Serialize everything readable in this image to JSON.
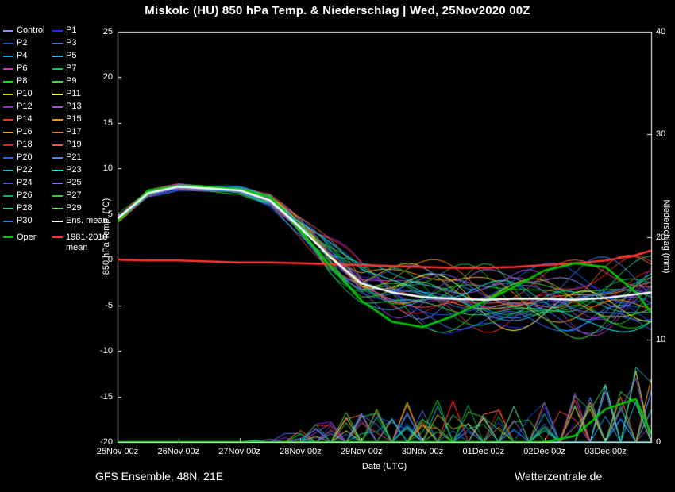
{
  "title": "Miskolc (HU) 850 hPa Temp. & Niederschlag | Wed, 25Nov2020 00Z",
  "footer": {
    "left": "GFS Ensemble, 48N, 21E",
    "right": "Wetterzentrale.de"
  },
  "legend": {
    "members": [
      {
        "label": "Control",
        "color": "#8c8cff"
      },
      {
        "label": "P1",
        "color": "#2929ff"
      },
      {
        "label": "P2",
        "color": "#0a5aff"
      },
      {
        "label": "P3",
        "color": "#3c78ff"
      },
      {
        "label": "P4",
        "color": "#00a0ff"
      },
      {
        "label": "P5",
        "color": "#28b4ff"
      },
      {
        "label": "P6",
        "color": "#c832c8"
      },
      {
        "label": "P7",
        "color": "#00c850"
      },
      {
        "label": "P8",
        "color": "#00e600"
      },
      {
        "label": "P9",
        "color": "#3cdc3c"
      },
      {
        "label": "P10",
        "color": "#d2d200"
      },
      {
        "label": "P11",
        "color": "#ffff3c"
      },
      {
        "label": "P12",
        "color": "#8c28d2"
      },
      {
        "label": "P13",
        "color": "#a050e6"
      },
      {
        "label": "P14",
        "color": "#ff3232"
      },
      {
        "label": "P15",
        "color": "#ff8c00"
      },
      {
        "label": "P16",
        "color": "#ffaa00"
      },
      {
        "label": "P17",
        "color": "#ff7828"
      },
      {
        "label": "P18",
        "color": "#e61e1e"
      },
      {
        "label": "P19",
        "color": "#ff5050"
      },
      {
        "label": "P20",
        "color": "#1e64ff"
      },
      {
        "label": "P21",
        "color": "#4687ff"
      },
      {
        "label": "P22",
        "color": "#00c8c8"
      },
      {
        "label": "P23",
        "color": "#00ffff"
      },
      {
        "label": "P24",
        "color": "#5050dc"
      },
      {
        "label": "P25",
        "color": "#7864ff"
      },
      {
        "label": "P26",
        "color": "#00b450"
      },
      {
        "label": "P27",
        "color": "#32cd32"
      },
      {
        "label": "P28",
        "color": "#28dc82"
      },
      {
        "label": "P29",
        "color": "#50e650"
      },
      {
        "label": "P30",
        "color": "#3273e6"
      },
      {
        "label": "Ens. mean",
        "color": "#ffffff"
      }
    ],
    "extra": [
      {
        "label": "Oper",
        "color": "#00c800"
      },
      {
        "label": "1981-2010 mean",
        "color": "#ff3434"
      }
    ]
  },
  "chart_data": {
    "type": "line",
    "title": "Miskolc (HU) 850 hPa Temp. & Niederschlag | Wed, 25Nov2020 00Z",
    "xlabel": "Date (UTC)",
    "ylabel_left": "850 hPa Temp. (°C)",
    "ylabel_right": "Niederschlag (mm)",
    "x_tick_labels": [
      "25Nov 00z",
      "26Nov 00z",
      "27Nov 00z",
      "28Nov 00z",
      "29Nov 00z",
      "30Nov 00z",
      "01Dec 00z",
      "02Dec 00z",
      "03Dec 00z"
    ],
    "x_span_days": 8.75,
    "temp_ticks": [
      25,
      20,
      15,
      10,
      5,
      0,
      -5,
      -10,
      -15,
      -20
    ],
    "precip_ticks": [
      40,
      30,
      20,
      10,
      0
    ],
    "ylim_temp": [
      -20,
      25
    ],
    "ylim_precip": [
      0,
      40
    ],
    "x_days": [
      0,
      0.5,
      1,
      1.5,
      2,
      2.5,
      3,
      3.5,
      4,
      4.5,
      5,
      5.5,
      6,
      6.5,
      7,
      7.5,
      8,
      8.5,
      8.75
    ],
    "series": [
      {
        "name": "1981-2010 mean",
        "color": "#ff3434",
        "width": 2.5,
        "values": [
          0,
          -0.1,
          -0.1,
          -0.2,
          -0.3,
          -0.3,
          -0.4,
          -0.5,
          -0.6,
          -0.7,
          -0.8,
          -0.9,
          -0.9,
          -0.8,
          -0.6,
          -0.4,
          -0.1,
          0.5,
          1.0
        ]
      },
      {
        "name": "Oper",
        "color": "#00c800",
        "width": 2.5,
        "values": [
          4.2,
          7.6,
          8.1,
          8.0,
          7.7,
          6.9,
          3.2,
          -0.8,
          -4.5,
          -6.8,
          -7.4,
          -6.2,
          -4.6,
          -3.0,
          -1.2,
          -0.4,
          -0.8,
          -3.6,
          -5.8
        ]
      },
      {
        "name": "Ens. mean",
        "color": "#ffffff",
        "width": 2.5,
        "values": [
          4.5,
          7.3,
          8.0,
          7.8,
          7.6,
          6.5,
          3.5,
          0.2,
          -2.6,
          -3.6,
          -4.1,
          -4.3,
          -4.4,
          -4.3,
          -4.3,
          -4.4,
          -4.2,
          -3.8,
          -3.6
        ]
      }
    ],
    "ensemble": {
      "members": [
        "Control",
        "P1",
        "P2",
        "P3",
        "P4",
        "P5",
        "P6",
        "P7",
        "P8",
        "P9",
        "P10",
        "P11",
        "P12",
        "P13",
        "P14",
        "P15",
        "P16",
        "P17",
        "P18",
        "P19",
        "P20",
        "P21",
        "P22",
        "P23",
        "P24",
        "P25",
        "P26",
        "P27",
        "P28",
        "P29",
        "P30"
      ],
      "base": [
        4.5,
        7.3,
        8.0,
        7.8,
        7.6,
        6.5,
        3.5,
        0.2,
        -2.6,
        -3.6,
        -4.1,
        -4.3,
        -4.4,
        -4.3,
        -4.3,
        -4.4,
        -4.2,
        -3.8,
        -3.6
      ],
      "spread": [
        0.5,
        0.5,
        0.45,
        0.45,
        0.5,
        0.9,
        1.6,
        2.6,
        3.2,
        3.6,
        4.0,
        4.3,
        4.5,
        4.6,
        4.6,
        4.8,
        5.0,
        5.0,
        5.0
      ],
      "precip_max": [
        0,
        0,
        0,
        0,
        0,
        0.4,
        1.0,
        2.0,
        2.6,
        3.0,
        3.0,
        3.4,
        3.0,
        3.0,
        3.2,
        4.0,
        4.5,
        6.0,
        5.0
      ],
      "oper_precip": [
        0,
        0,
        0,
        0,
        0,
        0,
        0,
        0,
        0,
        0,
        0,
        0,
        0,
        0,
        0,
        0.6,
        3.2,
        4.2,
        0.8
      ]
    }
  }
}
